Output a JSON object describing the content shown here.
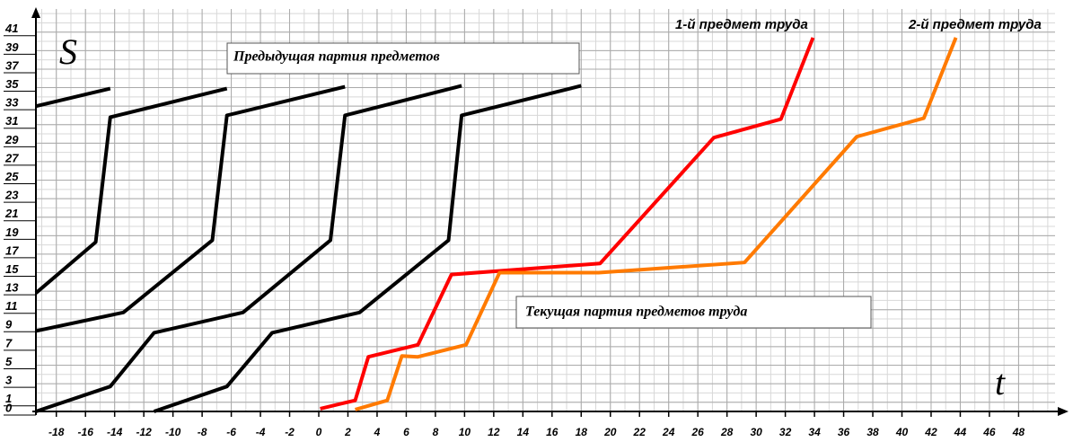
{
  "chart_data": {
    "type": "line",
    "annotations": [
      "S",
      "t",
      "Предыдущая партия предметов",
      "Текущая партия предметов труда"
    ],
    "xlim": [
      -19.4,
      50.5
    ],
    "ylim": [
      0,
      43.5
    ],
    "xticks": [
      -18,
      -16,
      -14,
      -12,
      -10,
      -8,
      -6,
      -4,
      -2,
      0,
      2,
      4,
      6,
      8,
      10,
      12,
      14,
      16,
      18,
      20,
      22,
      24,
      26,
      28,
      30,
      32,
      34,
      36,
      38,
      40,
      42,
      44,
      46,
      48
    ],
    "yticks": [
      0,
      1,
      3,
      5,
      7,
      9,
      11,
      13,
      15,
      17,
      19,
      21,
      23,
      25,
      27,
      29,
      31,
      33,
      35,
      37,
      39,
      41
    ],
    "grid": true,
    "series": [
      {
        "color": "#000000",
        "x": [
          -19.4,
          -14.3
        ],
        "values": [
          33,
          34.9
        ]
      },
      {
        "color": "#000000",
        "x": [
          -19.4,
          -15.3,
          -14.3,
          -6.3
        ],
        "values": [
          12.8,
          18.3,
          31.8,
          34.9
        ]
      },
      {
        "color": "#000000",
        "x": [
          -19.4,
          -13.4,
          -7.3,
          -6.3,
          1.8
        ],
        "values": [
          8.7,
          10.7,
          18.5,
          32,
          35.1
        ]
      },
      {
        "color": "#000000",
        "x": [
          -19.4,
          -14.3,
          -11.3,
          -5.2,
          0.8,
          1.8,
          9.8
        ],
        "values": [
          0,
          2.7,
          8.5,
          10.7,
          18.5,
          32,
          35.2
        ]
      },
      {
        "color": "#000000",
        "x": [
          -11.3,
          -6.3,
          -3.2,
          2.8,
          8.9,
          9.8,
          18
        ],
        "values": [
          0,
          2.7,
          8.5,
          10.7,
          18.5,
          32,
          35.2
        ]
      },
      {
        "name": "1-й предмет труда",
        "color": "#ff0000",
        "x": [
          0.1,
          2.5,
          3.4,
          6.8,
          9.1,
          19.3,
          27.1,
          31.7,
          33.9
        ],
        "values": [
          0.3,
          1.2,
          5.9,
          7.2,
          14.8,
          16,
          29.6,
          31.6,
          40.4
        ]
      },
      {
        "name": "2-й предмет труда",
        "color": "#ff7a00",
        "x": [
          2.5,
          4.7,
          5.7,
          6.8,
          10.1,
          12.4,
          19.2,
          29.2,
          36.9,
          41.5,
          43.7
        ],
        "values": [
          0.2,
          1.2,
          6.0,
          5.9,
          7.2,
          15.0,
          15.0,
          16.1,
          29.7,
          31.7,
          40.4
        ]
      }
    ]
  }
}
